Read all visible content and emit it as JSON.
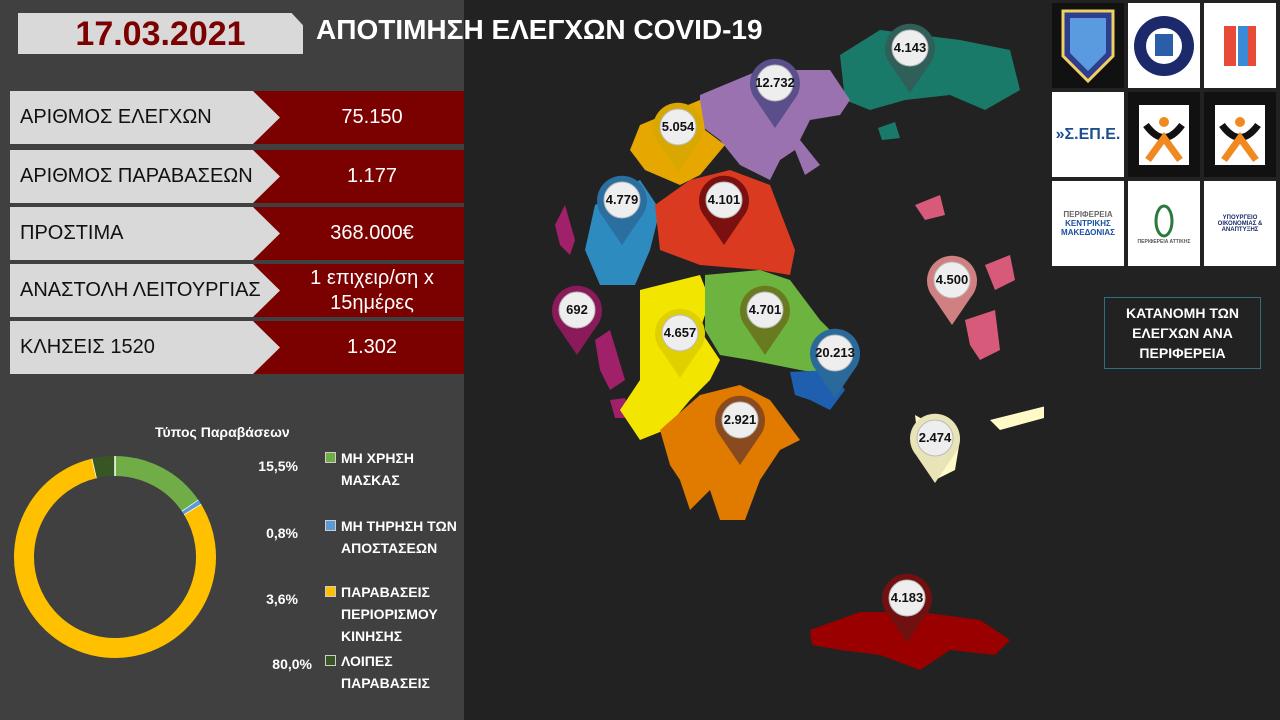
{
  "header": {
    "date": "17.03.2021",
    "title": "ΑΠΟΤΙΜΗΣΗ  ΕΛΕΓΧΩΝ COVID-19"
  },
  "stats": [
    {
      "label": "ΑΡΙΘΜΟΣ ΕΛΕΓΧΩΝ",
      "value": "75.150"
    },
    {
      "label": "ΑΡΙΘΜΟΣ ΠΑΡΑΒΑΣΕΩΝ",
      "value": "1.177"
    },
    {
      "label": "ΠΡΟΣΤΙΜΑ",
      "value": "368.000€"
    },
    {
      "label": "ΑΝΑΣΤΟΛΗ ΛΕΙΤΟΥΡΓΙΑΣ",
      "value": "1 επιχειρ/ση x 15ημέρες"
    },
    {
      "label": "ΚΛΗΣΕΙΣ 1520",
      "value": "1.302"
    }
  ],
  "chart_data": {
    "type": "pie",
    "title": "Τύπος Παραβάσεων",
    "legend": "right",
    "series": [
      {
        "name": "ΜΗ ΧΡΗΣΗ ΜΑΣΚΑΣ",
        "value": 15.5,
        "color": "#70ad47"
      },
      {
        "name": "ΜΗ ΤΗΡΗΣΗ ΤΩΝ ΑΠΟΣΤΑΣΕΩΝ",
        "value": 0.8,
        "color": "#5b9bd5"
      },
      {
        "name": "ΠΑΡΑΒΑΣΕΙΣ ΠΕΡΙΟΡΙΣΜΟΥ ΚΙΝΗΣΗΣ",
        "value": 80.0,
        "color": "#ffc000"
      },
      {
        "name": "ΛΟΙΠΕΣ ΠΑΡΑΒΑΣΕΙΣ",
        "value": 3.6,
        "color": "#375623"
      }
    ],
    "data_labels": [
      "15,5%",
      "0,8%",
      "3,6%",
      "80,0%"
    ]
  },
  "logos": [
    "ΛΙΜΕΝΙΚΟ ΣΩΜΑ",
    "ΕΛΛΗΝΙΚΗ ΑΣΤΥΝΟΜΙΑ",
    "ΕΘΝΙΚΗ ΑΡΧΗ ΔΙΑΦΑΝΕΙΑΣ",
    "Σ.ΕΠ.Ε. ΣΩΜΑ ΕΠΙΘΕΩΡΗΣΗΣ ΕΡΓΑΣΙΑΣ",
    "ΔΗΜΟΤΙΚΗ ΑΣΤΥΝΟΜΙΑ ΔΗΜΟΣ ΑΘΗΝΑΙΩΝ",
    "ΔΗΜΟΤΙΚΗ ΑΣΤΥΝΟΜΙΑ ΔΗΜΟΣ ΚΑΡΔΙΤΣΑΣ",
    "ΠΕΡΙΦΕΡΕΙΑ ΚΕΝΤΡΙΚΗΣ ΜΑΚΕΔΟΝΙΑΣ",
    "ΕΛΛΗΝΙΚΗ ΔΗΜΟΚΡΑΤΙΑ ΠΕΡΙΦΕΡΕΙΑ ΑΤΤΙΚΗΣ",
    "ΥΠΟΥΡΓΕΙΟ ΟΙΚΟΝΟΜΙΑΣ & ΑΝΑΠΤΥΞΗΣ"
  ],
  "map": {
    "caption": "ΚΑΤΑΝΟΜΗ ΤΩΝ ΕΛΕΓΧΩΝ ΑΝΑ ΠΕΡΙΦΕΡΕΙΑ",
    "pins": [
      {
        "value": "4.143",
        "color": "#2f5f58"
      },
      {
        "value": "12.732",
        "color": "#5a4f8a"
      },
      {
        "value": "5.054",
        "color": "#d9a800"
      },
      {
        "value": "4.779",
        "color": "#2a6f9f"
      },
      {
        "value": "4.101",
        "color": "#7a1010"
      },
      {
        "value": "692",
        "color": "#8a1a5a"
      },
      {
        "value": "4.657",
        "color": "#e0d000"
      },
      {
        "value": "4.701",
        "color": "#6a7a20"
      },
      {
        "value": "20.213",
        "color": "#2a6a9a"
      },
      {
        "value": "4.500",
        "color": "#d08080"
      },
      {
        "value": "2.474",
        "color": "#e8e4b8"
      },
      {
        "value": "2.921",
        "color": "#8a4a20"
      },
      {
        "value": "4.183",
        "color": "#701010"
      }
    ]
  }
}
